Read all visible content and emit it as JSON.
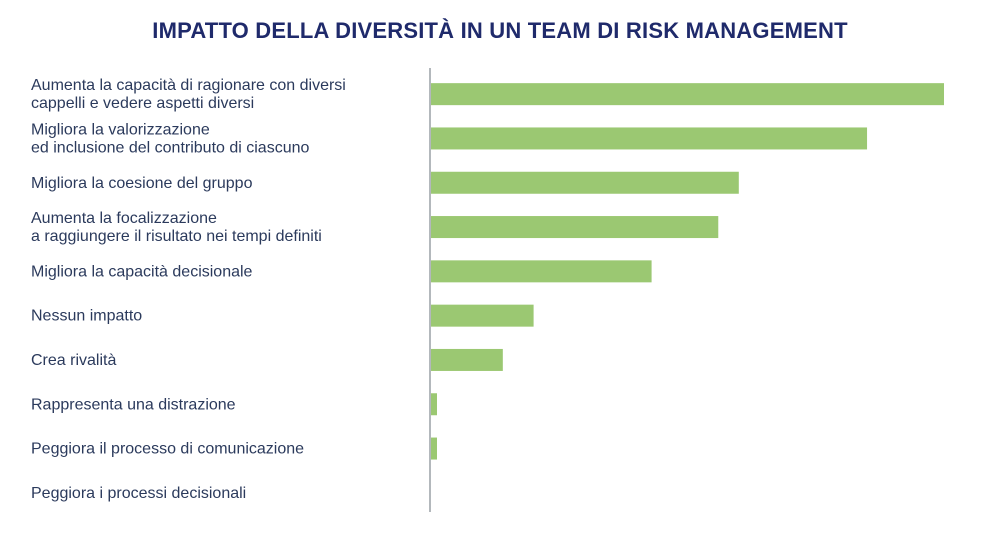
{
  "chart_data": {
    "type": "bar",
    "orientation": "horizontal",
    "title": "IMPATTO DELLA DIVERSITÀ IN UN TEAM DI RISK MANAGEMENT",
    "categories": [
      [
        "Aumenta la capacità di ragionare con diversi",
        "cappelli e vedere aspetti diversi"
      ],
      [
        "Migliora la valorizzazione",
        "ed inclusione del contributo di ciascuno"
      ],
      [
        "Migliora la coesione del gruppo"
      ],
      [
        "Aumenta la focalizzazione",
        "a raggiungere il risultato nei tempi definiti"
      ],
      [
        "Migliora la capacità decisionale"
      ],
      [
        "Nessun impatto"
      ],
      [
        "Crea rivalità"
      ],
      [
        "Rappresenta una distrazione"
      ],
      [
        "Peggiora il processo di comunicazione"
      ],
      [
        "Peggiora i processi decisionali"
      ]
    ],
    "values": [
      100,
      85,
      60,
      56,
      43,
      20,
      14,
      1,
      1,
      0
    ],
    "xlim": [
      0,
      100
    ],
    "grid": false,
    "legend": "none",
    "colors": {
      "bar": "#9bc872",
      "axis": "#9aa0a6",
      "title": "#1f2a6b",
      "label": "#2b3a5c"
    }
  }
}
